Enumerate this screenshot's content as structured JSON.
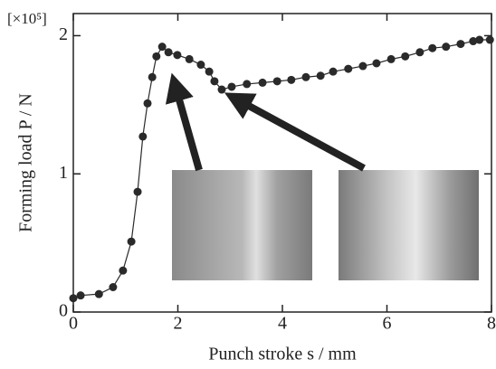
{
  "chart_data": {
    "type": "line",
    "x_label": "Punch stroke s / mm",
    "y_label": "Forming load P / N",
    "y_unit": "[×10⁵]",
    "x": [
      0,
      0.14,
      0.49,
      0.76,
      0.95,
      1.11,
      1.23,
      1.33,
      1.42,
      1.51,
      1.59,
      1.7,
      1.82,
      1.99,
      2.22,
      2.44,
      2.6,
      2.7,
      2.84,
      3.03,
      3.32,
      3.62,
      3.9,
      4.17,
      4.45,
      4.73,
      4.97,
      5.26,
      5.54,
      5.8,
      6.08,
      6.35,
      6.63,
      6.87,
      7.13,
      7.41,
      7.65,
      7.77,
      7.97
    ],
    "values": [
      0.1,
      0.12,
      0.13,
      0.18,
      0.3,
      0.51,
      0.87,
      1.27,
      1.51,
      1.7,
      1.85,
      1.92,
      1.88,
      1.86,
      1.83,
      1.79,
      1.74,
      1.67,
      1.61,
      1.63,
      1.65,
      1.66,
      1.67,
      1.68,
      1.7,
      1.71,
      1.74,
      1.76,
      1.78,
      1.8,
      1.83,
      1.85,
      1.88,
      1.91,
      1.92,
      1.94,
      1.96,
      1.97,
      1.97
    ],
    "color": "#2a2a2a",
    "xlim": [
      0,
      8
    ],
    "xticks": [
      0,
      2,
      4,
      6,
      8
    ],
    "ylim": [
      0,
      2.16
    ],
    "yticks": [
      0,
      1,
      2
    ],
    "grid": false
  }
}
